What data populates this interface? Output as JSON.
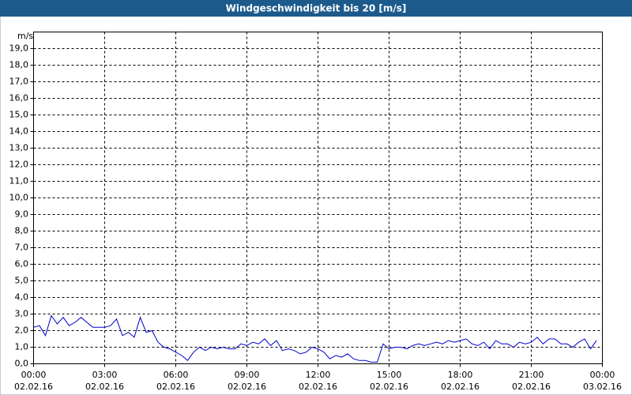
{
  "chart_data": {
    "type": "line",
    "title": "Windgeschwindigkeit bis 20 [m/s]",
    "y_label": "m/s",
    "x": [
      0,
      0.25,
      0.5,
      0.75,
      1,
      1.25,
      1.5,
      1.75,
      2,
      2.25,
      2.5,
      2.75,
      3,
      3.25,
      3.5,
      3.75,
      4,
      4.25,
      4.5,
      4.75,
      5,
      5.25,
      5.5,
      5.75,
      6,
      6.25,
      6.5,
      6.75,
      7,
      7.25,
      7.5,
      7.75,
      8,
      8.25,
      8.5,
      8.75,
      9,
      9.25,
      9.5,
      9.75,
      10,
      10.25,
      10.5,
      10.75,
      11,
      11.25,
      11.5,
      11.75,
      12,
      12.25,
      12.5,
      12.75,
      13,
      13.25,
      13.5,
      13.75,
      14,
      14.25,
      14.5,
      14.75,
      15,
      15.25,
      15.5,
      15.75,
      16,
      16.25,
      16.5,
      16.75,
      17,
      17.25,
      17.5,
      17.75,
      18,
      18.25,
      18.5,
      18.75,
      19,
      19.25,
      19.5,
      19.75,
      20,
      20.25,
      20.5,
      20.75,
      21,
      21.25,
      21.5,
      21.75,
      22,
      22.25,
      22.5,
      22.75,
      23,
      23.25,
      23.5,
      23.75
    ],
    "series": [
      {
        "name": "Windgeschwindigkeit",
        "color": "#0000cc",
        "values": [
          2.2,
          2.3,
          1.7,
          2.9,
          2.4,
          2.8,
          2.3,
          2.5,
          2.8,
          2.5,
          2.2,
          2.2,
          2.2,
          2.3,
          2.7,
          1.7,
          1.9,
          1.6,
          2.8,
          1.9,
          2.0,
          1.3,
          1.0,
          0.9,
          0.7,
          0.5,
          0.2,
          0.7,
          1.0,
          0.8,
          1.0,
          0.9,
          1.0,
          0.9,
          0.9,
          1.2,
          1.1,
          1.3,
          1.2,
          1.5,
          1.1,
          1.4,
          0.8,
          0.9,
          0.8,
          0.6,
          0.7,
          1.0,
          0.9,
          0.7,
          0.3,
          0.5,
          0.4,
          0.6,
          0.3,
          0.2,
          0.2,
          0.1,
          0.1,
          1.2,
          0.9,
          1.0,
          1.0,
          0.9,
          1.1,
          1.2,
          1.1,
          1.2,
          1.3,
          1.2,
          1.4,
          1.3,
          1.4,
          1.5,
          1.2,
          1.1,
          1.3,
          0.9,
          1.4,
          1.2,
          1.2,
          1.0,
          1.3,
          1.2,
          1.3,
          1.6,
          1.2,
          1.5,
          1.5,
          1.2,
          1.2,
          1.0,
          1.3,
          1.5,
          0.9,
          1.4
        ]
      }
    ],
    "xlim": [
      0,
      24
    ],
    "xticks": [
      {
        "value": 0,
        "label": [
          "00:00",
          "02.02.16"
        ]
      },
      {
        "value": 3,
        "label": [
          "03:00",
          "02.02.16"
        ]
      },
      {
        "value": 6,
        "label": [
          "06:00",
          "02.02.16"
        ]
      },
      {
        "value": 9,
        "label": [
          "09:00",
          "02.02.16"
        ]
      },
      {
        "value": 12,
        "label": [
          "12:00",
          "02.02.16"
        ]
      },
      {
        "value": 15,
        "label": [
          "15:00",
          "02.02.16"
        ]
      },
      {
        "value": 18,
        "label": [
          "18:00",
          "02.02.16"
        ]
      },
      {
        "value": 21,
        "label": [
          "21:00",
          "02.02.16"
        ]
      },
      {
        "value": 24,
        "label": [
          "00:00",
          "03.02.16"
        ]
      }
    ],
    "ylim": [
      0,
      20
    ],
    "yticks": [
      {
        "value": 0,
        "label": "0,0"
      },
      {
        "value": 1,
        "label": "1,0"
      },
      {
        "value": 2,
        "label": "2,0"
      },
      {
        "value": 3,
        "label": "3,0"
      },
      {
        "value": 4,
        "label": "4,0"
      },
      {
        "value": 5,
        "label": "5,0"
      },
      {
        "value": 6,
        "label": "6,0"
      },
      {
        "value": 7,
        "label": "7,0"
      },
      {
        "value": 8,
        "label": "8,0"
      },
      {
        "value": 9,
        "label": "9,0"
      },
      {
        "value": 10,
        "label": "10,0"
      },
      {
        "value": 11,
        "label": "11,0"
      },
      {
        "value": 12,
        "label": "12,0"
      },
      {
        "value": 13,
        "label": "13,0"
      },
      {
        "value": 14,
        "label": "14,0"
      },
      {
        "value": 15,
        "label": "15,0"
      },
      {
        "value": 16,
        "label": "16,0"
      },
      {
        "value": 17,
        "label": "17,0"
      },
      {
        "value": 18,
        "label": "18,0"
      },
      {
        "value": 19,
        "label": "19,0"
      }
    ],
    "grid": true
  }
}
